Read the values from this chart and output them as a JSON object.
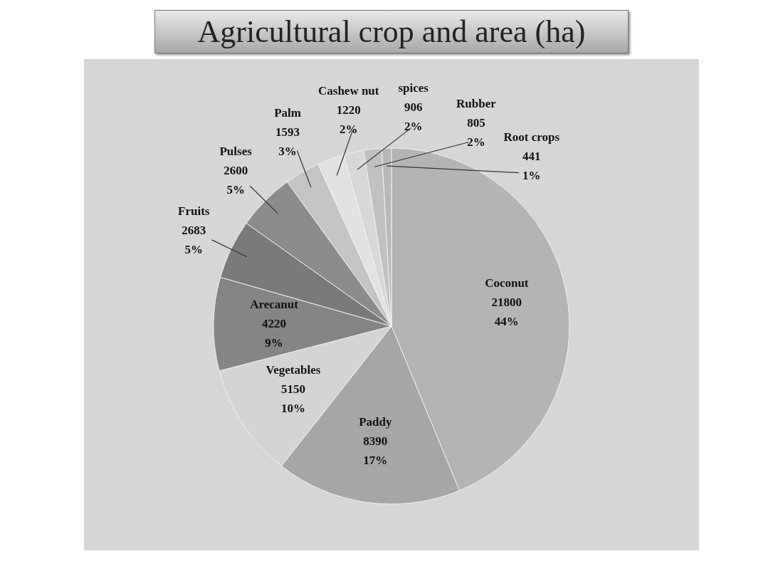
{
  "chart_data": {
    "type": "pie",
    "title": "Agricultural crop and area (ha)",
    "categories": [
      "Coconut",
      "Paddy",
      "Vegetables",
      "Arecanut",
      "Fruits",
      "Pulses",
      "Palm",
      "Cashew nut",
      "spices",
      "Rubber",
      "Root crops"
    ],
    "values": [
      21800,
      8390,
      5150,
      4220,
      2683,
      2600,
      1593,
      1220,
      906,
      805,
      441
    ],
    "value_labels": [
      "21800\n44%",
      "8390\n17%",
      "5150\n10%",
      "4220\n9%",
      "2683\n5%",
      "2600\n5%",
      "1593\n3%",
      "1220\n2%",
      "906\n2%",
      "805\n2%",
      "441\n1%"
    ],
    "colors": [
      "#b4b4b4",
      "#a6a6a6",
      "#d4d4d4",
      "#858585",
      "#7a7a7a",
      "#8c8c8c",
      "#c4c4c4",
      "#e2e2e2",
      "#d8d8d8",
      "#c0c0c0",
      "#b8b8b8"
    ],
    "legend": false
  }
}
